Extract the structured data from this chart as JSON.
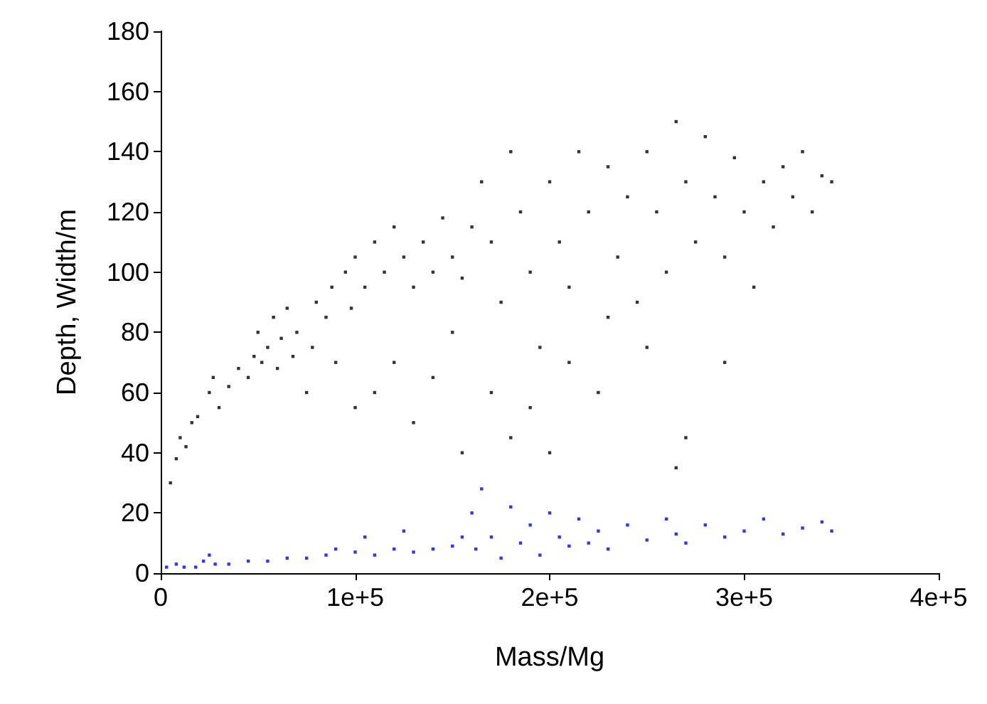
{
  "chart_data": {
    "type": "scatter",
    "xlabel": "Mass/Mg",
    "ylabel": "Depth, Width/m",
    "xlim": [
      0,
      400000
    ],
    "ylim": [
      0,
      180
    ],
    "xticks": [
      0,
      {
        "value": 100000,
        "label": "1e+5"
      },
      {
        "value": 200000,
        "label": "2e+5"
      },
      {
        "value": 300000,
        "label": "3e+5"
      },
      {
        "value": 400000,
        "label": "4e+5"
      }
    ],
    "yticks": [
      0,
      20,
      40,
      60,
      80,
      100,
      120,
      140,
      160,
      180
    ],
    "grid": false,
    "marker": "square",
    "series": [
      {
        "color": "#000000",
        "x": [
          5000,
          8000,
          10000,
          13000,
          16000,
          19000,
          25000,
          27000,
          30000,
          35000,
          40000,
          45000,
          48000,
          50000,
          52000,
          55000,
          58000,
          60000,
          62000,
          65000,
          68000,
          70000,
          75000,
          78000,
          80000,
          85000,
          88000,
          90000,
          95000,
          98000,
          100000,
          105000,
          110000,
          115000,
          120000,
          125000,
          130000,
          135000,
          140000,
          145000,
          150000,
          155000,
          160000,
          100000,
          110000,
          120000,
          130000,
          140000,
          150000,
          155000,
          165000,
          170000,
          175000,
          180000,
          185000,
          190000,
          195000,
          200000,
          205000,
          210000,
          215000,
          220000,
          225000,
          230000,
          235000,
          240000,
          245000,
          250000,
          255000,
          260000,
          265000,
          270000,
          275000,
          280000,
          285000,
          290000,
          295000,
          300000,
          305000,
          310000,
          315000,
          320000,
          325000,
          330000,
          335000,
          340000,
          345000,
          170000,
          180000,
          190000,
          200000,
          210000,
          230000,
          250000,
          265000,
          270000,
          290000
        ],
        "values": [
          30,
          38,
          45,
          42,
          50,
          52,
          60,
          65,
          55,
          62,
          68,
          65,
          72,
          80,
          70,
          75,
          85,
          68,
          78,
          88,
          72,
          80,
          60,
          75,
          90,
          85,
          95,
          70,
          100,
          88,
          105,
          95,
          110,
          100,
          115,
          105,
          95,
          110,
          100,
          118,
          105,
          98,
          115,
          55,
          60,
          70,
          50,
          65,
          80,
          40,
          130,
          110,
          90,
          140,
          120,
          100,
          75,
          130,
          110,
          95,
          140,
          120,
          60,
          135,
          105,
          125,
          90,
          140,
          120,
          100,
          150,
          130,
          110,
          145,
          125,
          105,
          138,
          120,
          95,
          130,
          115,
          135,
          125,
          140,
          120,
          132,
          130,
          60,
          45,
          55,
          40,
          70,
          85,
          75,
          35,
          45,
          70
        ]
      },
      {
        "color": "#0000ff",
        "x": [
          3000,
          8000,
          12000,
          18000,
          22000,
          25000,
          28000,
          35000,
          45000,
          55000,
          65000,
          75000,
          85000,
          90000,
          100000,
          105000,
          110000,
          120000,
          125000,
          130000,
          140000,
          150000,
          155000,
          160000,
          162000,
          165000,
          170000,
          175000,
          180000,
          185000,
          190000,
          195000,
          200000,
          205000,
          210000,
          215000,
          220000,
          225000,
          230000,
          240000,
          250000,
          260000,
          265000,
          270000,
          280000,
          290000,
          300000,
          310000,
          320000,
          330000,
          340000,
          345000
        ],
        "values": [
          2,
          3,
          2,
          2,
          4,
          6,
          3,
          3,
          4,
          4,
          5,
          5,
          6,
          8,
          7,
          12,
          6,
          8,
          14,
          7,
          8,
          9,
          12,
          20,
          8,
          28,
          12,
          5,
          22,
          10,
          16,
          6,
          20,
          12,
          9,
          18,
          10,
          14,
          8,
          16,
          11,
          18,
          13,
          10,
          16,
          12,
          14,
          18,
          13,
          15,
          17,
          14
        ]
      }
    ]
  }
}
